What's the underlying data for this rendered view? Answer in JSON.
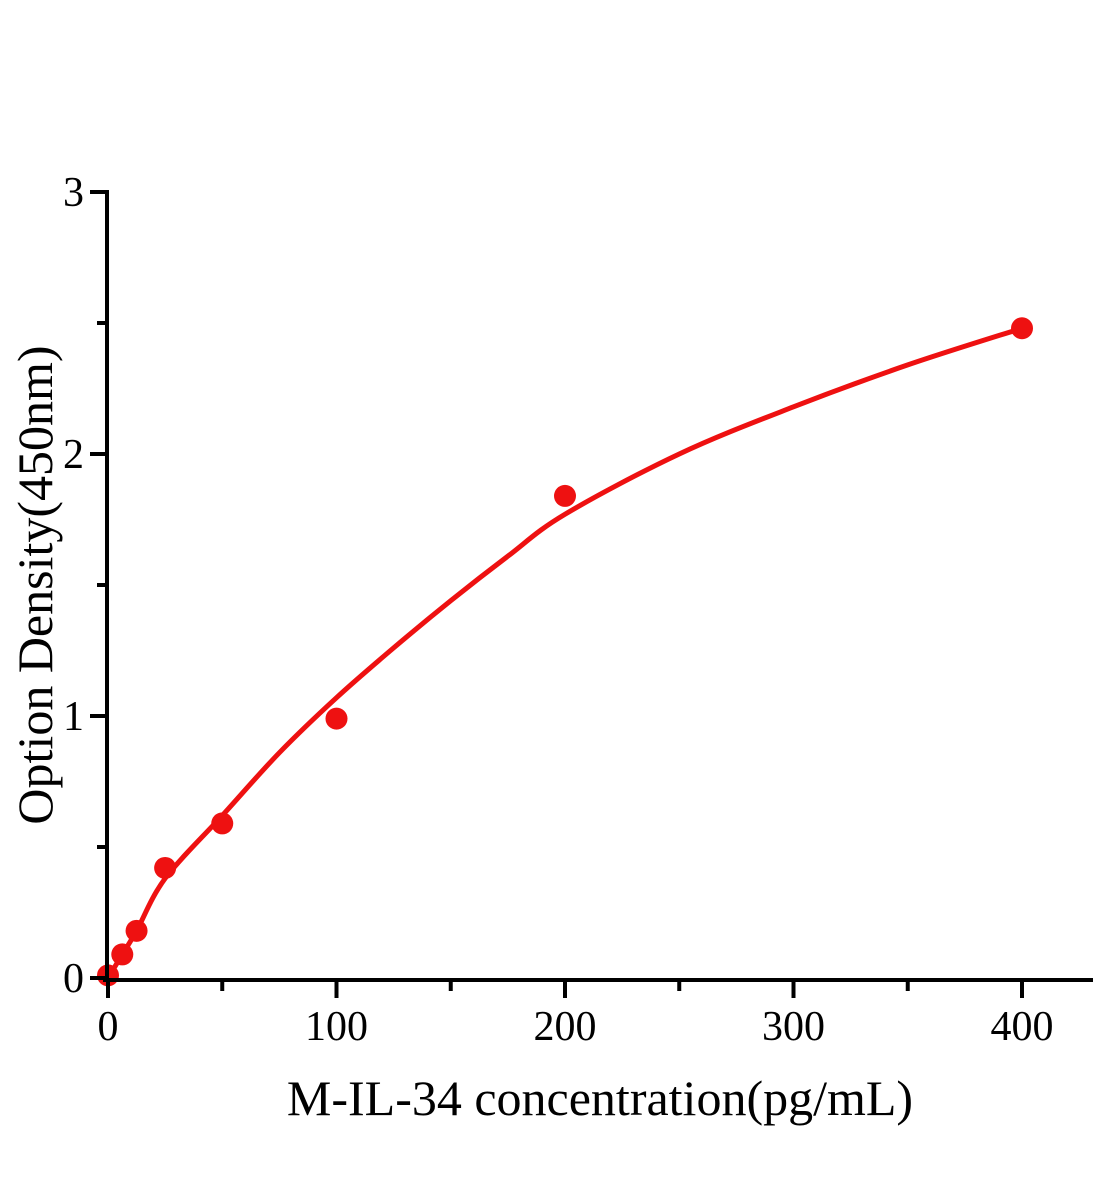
{
  "figure": {
    "background": "#ffffff",
    "axis_color": "#000000",
    "accent_red": "#ee1111"
  },
  "chart_data": {
    "type": "scatter",
    "title": "",
    "xlabel": "M-IL-34 concentration(pg/mL)",
    "ylabel": "Option Density(450nm)",
    "xlim": [
      0,
      431
    ],
    "ylim": [
      0,
      3
    ],
    "grid": false,
    "legend": false,
    "x_major_ticks": [
      0,
      100,
      200,
      300,
      400
    ],
    "x_minor_ticks": [
      50,
      150,
      250,
      350
    ],
    "y_major_ticks": [
      0,
      1,
      2,
      3
    ],
    "y_minor_ticks": [
      0.5,
      1.5,
      2.5
    ],
    "series": [
      {
        "name": "standard-points",
        "type": "scatter",
        "color": "#ee1111",
        "x": [
          0,
          6.25,
          12.5,
          25,
          50,
          100,
          200,
          400
        ],
        "y": [
          0.01,
          0.09,
          0.18,
          0.42,
          0.59,
          0.99,
          1.84,
          2.48
        ]
      },
      {
        "name": "fit-curve",
        "type": "line",
        "color": "#ee1111",
        "x": [
          0,
          6.25,
          12.5,
          25,
          50,
          75,
          100,
          125,
          150,
          175,
          200,
          250,
          300,
          350,
          400
        ],
        "y": [
          0.0,
          0.09,
          0.18,
          0.38,
          0.62,
          0.86,
          1.07,
          1.26,
          1.44,
          1.61,
          1.77,
          2.0,
          2.18,
          2.34,
          2.48
        ]
      }
    ]
  }
}
